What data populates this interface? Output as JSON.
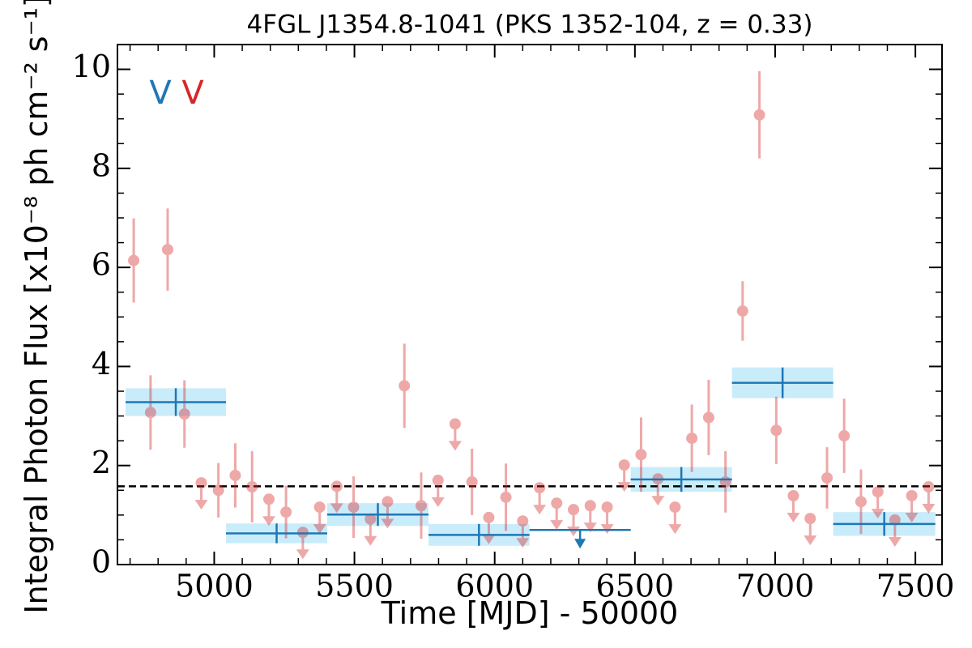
{
  "chart_data": {
    "type": "lightcurve",
    "title": "4FGL J1354.8-1041 (PKS 1352-104, z = 0.33)",
    "x_label": "Time [MJD] - 50000",
    "y_label": "Integral Photon Flux [x10⁻⁸ ph cm⁻² s⁻¹]",
    "xlim": [
      4655,
      7595
    ],
    "ylim": [
      0,
      10.5
    ],
    "xticks": [
      5000,
      5500,
      6000,
      6500,
      7000,
      7500
    ],
    "yticks": [
      0,
      2,
      4,
      6,
      8,
      10
    ],
    "xminor_ticks": [
      4700,
      4800,
      4900,
      5100,
      5200,
      5300,
      5400,
      5600,
      5700,
      5800,
      5900,
      6100,
      6200,
      6300,
      6400,
      6600,
      6700,
      6800,
      6900,
      7100,
      7200,
      7300,
      7400,
      7500
    ],
    "yminor_ticks": [
      0.5,
      1,
      1.5,
      2.5,
      3,
      3.5,
      4.5,
      5,
      5.5,
      6.5,
      7,
      7.5,
      8.5,
      9,
      9.5,
      10
    ],
    "hline": 1.58,
    "annotations": [
      {
        "text": "V",
        "color": "#1f77b4"
      },
      {
        "text": "V",
        "color": "#d62728"
      }
    ],
    "points": {
      "color": "#d62728",
      "x": [
        4713,
        4773,
        4834,
        4894,
        4954,
        5015,
        5075,
        5135,
        5195,
        5256,
        5316,
        5376,
        5437,
        5497,
        5557,
        5618,
        5678,
        5738,
        5798,
        5859,
        5919,
        5979,
        6040,
        6100,
        6160,
        6221,
        6281,
        6341,
        6401,
        6462,
        6522,
        6582,
        6643,
        6703,
        6763,
        6823,
        6884,
        6944,
        7004,
        7065,
        7125,
        7185,
        7246,
        7306,
        7366,
        7427,
        7487,
        7547
      ],
      "values": [
        6.14,
        3.07,
        6.36,
        3.04,
        1.65,
        1.5,
        1.8,
        1.57,
        1.32,
        1.06,
        0.65,
        1.16,
        1.58,
        1.16,
        0.92,
        1.27,
        3.61,
        1.19,
        1.7,
        2.84,
        1.67,
        0.95,
        1.36,
        0.88,
        1.55,
        1.24,
        1.11,
        1.19,
        1.16,
        2.01,
        2.22,
        1.73,
        1.16,
        2.55,
        2.97,
        1.67,
        5.12,
        9.08,
        2.71,
        1.39,
        0.93,
        1.75,
        2.6,
        1.27,
        1.47,
        0.9,
        1.39,
        1.57
      ],
      "errors": [
        0.85,
        0.75,
        0.83,
        0.68,
        null,
        0.55,
        0.65,
        0.72,
        null,
        0.53,
        null,
        null,
        null,
        0.62,
        null,
        null,
        0.85,
        0.67,
        null,
        null,
        0.67,
        null,
        0.68,
        null,
        null,
        null,
        null,
        null,
        null,
        null,
        0.75,
        null,
        null,
        0.68,
        0.76,
        0.62,
        0.6,
        0.88,
        0.68,
        null,
        null,
        0.62,
        0.75,
        0.65,
        null,
        null,
        null,
        null
      ],
      "upper_limits": [
        false,
        false,
        false,
        false,
        true,
        false,
        false,
        false,
        true,
        false,
        true,
        true,
        true,
        false,
        true,
        true,
        false,
        false,
        true,
        true,
        false,
        true,
        false,
        true,
        true,
        true,
        true,
        true,
        true,
        true,
        false,
        true,
        true,
        false,
        false,
        false,
        false,
        false,
        false,
        true,
        true,
        false,
        false,
        false,
        true,
        true,
        true,
        true
      ]
    },
    "bins_series": {
      "color": "#1f77b4",
      "band_color": "#c9ecfb",
      "bins": [
        4684,
        5042,
        5403,
        5764,
        6124,
        6485,
        6846,
        7207,
        7571
      ],
      "values": [
        3.28,
        0.63,
        1.01,
        0.6,
        0.7,
        1.72,
        3.67,
        0.82
      ],
      "errors": [
        0.28,
        0.2,
        0.23,
        0.22,
        null,
        0.25,
        0.31,
        0.24
      ],
      "upper_limits": [
        false,
        false,
        false,
        false,
        true,
        false,
        false,
        false
      ]
    }
  }
}
